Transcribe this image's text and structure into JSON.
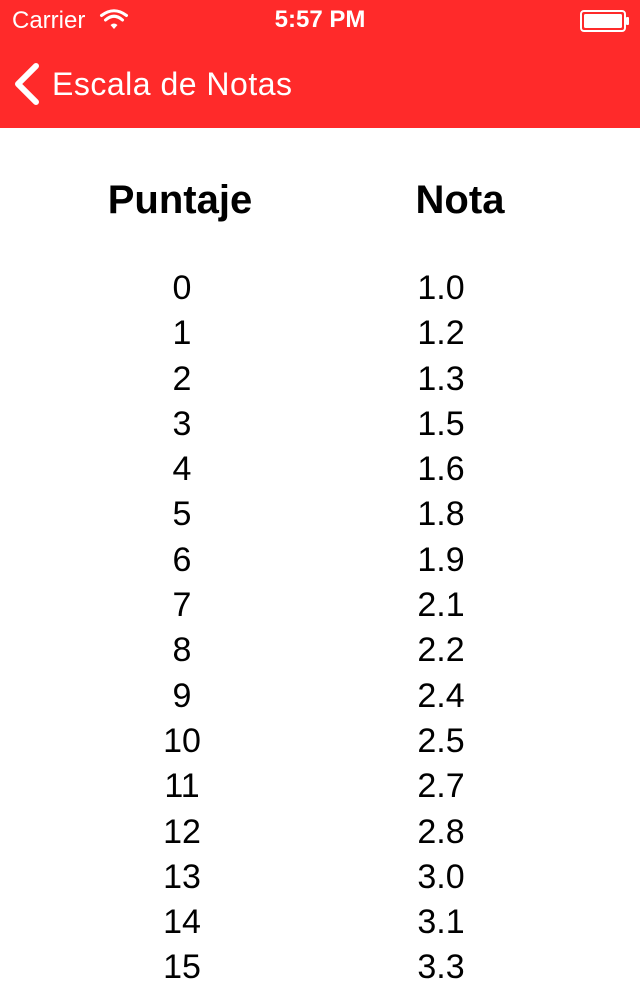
{
  "status_bar": {
    "carrier": "Carrier",
    "time": "5:57 PM"
  },
  "nav": {
    "back_label": "Escala de Notas"
  },
  "table": {
    "headers": {
      "puntaje": "Puntaje",
      "nota": "Nota"
    },
    "rows": [
      {
        "puntaje": "0",
        "nota": "1.0"
      },
      {
        "puntaje": "1",
        "nota": "1.2"
      },
      {
        "puntaje": "2",
        "nota": "1.3"
      },
      {
        "puntaje": "3",
        "nota": "1.5"
      },
      {
        "puntaje": "4",
        "nota": "1.6"
      },
      {
        "puntaje": "5",
        "nota": "1.8"
      },
      {
        "puntaje": "6",
        "nota": "1.9"
      },
      {
        "puntaje": "7",
        "nota": "2.1"
      },
      {
        "puntaje": "8",
        "nota": "2.2"
      },
      {
        "puntaje": "9",
        "nota": "2.4"
      },
      {
        "puntaje": "10",
        "nota": "2.5"
      },
      {
        "puntaje": "11",
        "nota": "2.7"
      },
      {
        "puntaje": "12",
        "nota": "2.8"
      },
      {
        "puntaje": "13",
        "nota": "3.0"
      },
      {
        "puntaje": "14",
        "nota": "3.1"
      },
      {
        "puntaje": "15",
        "nota": "3.3"
      }
    ]
  },
  "colors": {
    "header_bg": "#ff2a2a",
    "header_text": "#ffffff"
  },
  "icons": {
    "wifi": "wifi-icon",
    "battery": "battery-icon",
    "back": "chevron-left-icon"
  }
}
